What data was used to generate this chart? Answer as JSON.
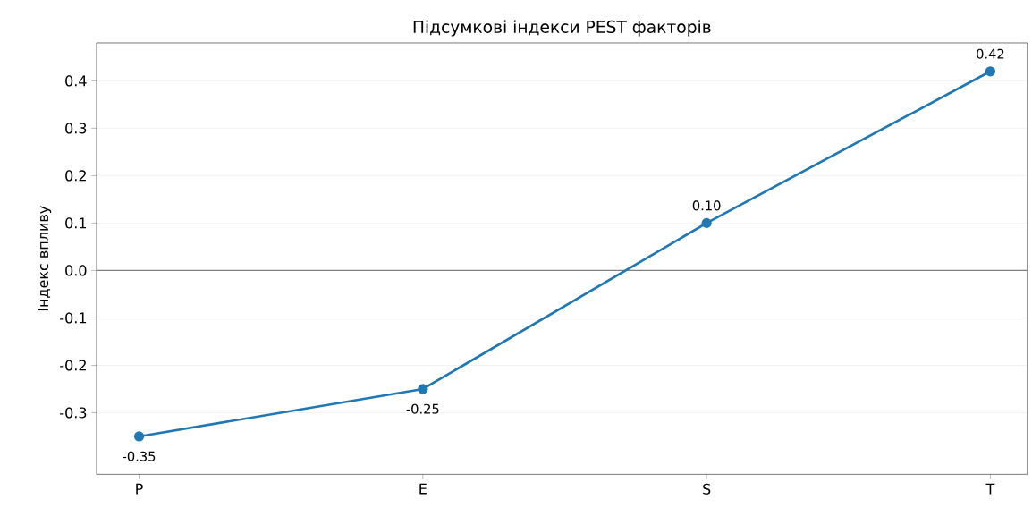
{
  "chart_data": {
    "type": "line",
    "title": "Підсумкові індекси PEST факторів",
    "ylabel": "Індекс впливу",
    "categories": [
      "P",
      "E",
      "S",
      "T"
    ],
    "series": [
      {
        "color": "#1f77b4",
        "values": [
          -0.35,
          -0.25,
          0.1,
          0.42
        ],
        "value_labels": [
          "-0.35",
          "-0.25",
          "0.10",
          "0.42"
        ]
      }
    ],
    "ylim": [
      -0.43,
      0.48
    ],
    "yticks": [
      {
        "value": -0.3,
        "label": "-0.3"
      },
      {
        "value": -0.2,
        "label": "-0.2"
      },
      {
        "value": -0.1,
        "label": "-0.1"
      },
      {
        "value": 0,
        "label": "0.0"
      },
      {
        "value": 0.1,
        "label": "0.1"
      },
      {
        "value": 0.2,
        "label": "0.2"
      },
      {
        "value": 0.3,
        "label": "0.3"
      },
      {
        "value": 0.4,
        "label": "0.4"
      }
    ],
    "ref_lines": [
      {
        "axis": "y",
        "value": 0,
        "color": "#808080"
      }
    ],
    "grid": "y",
    "marker": "circle",
    "line_style": "solid"
  }
}
